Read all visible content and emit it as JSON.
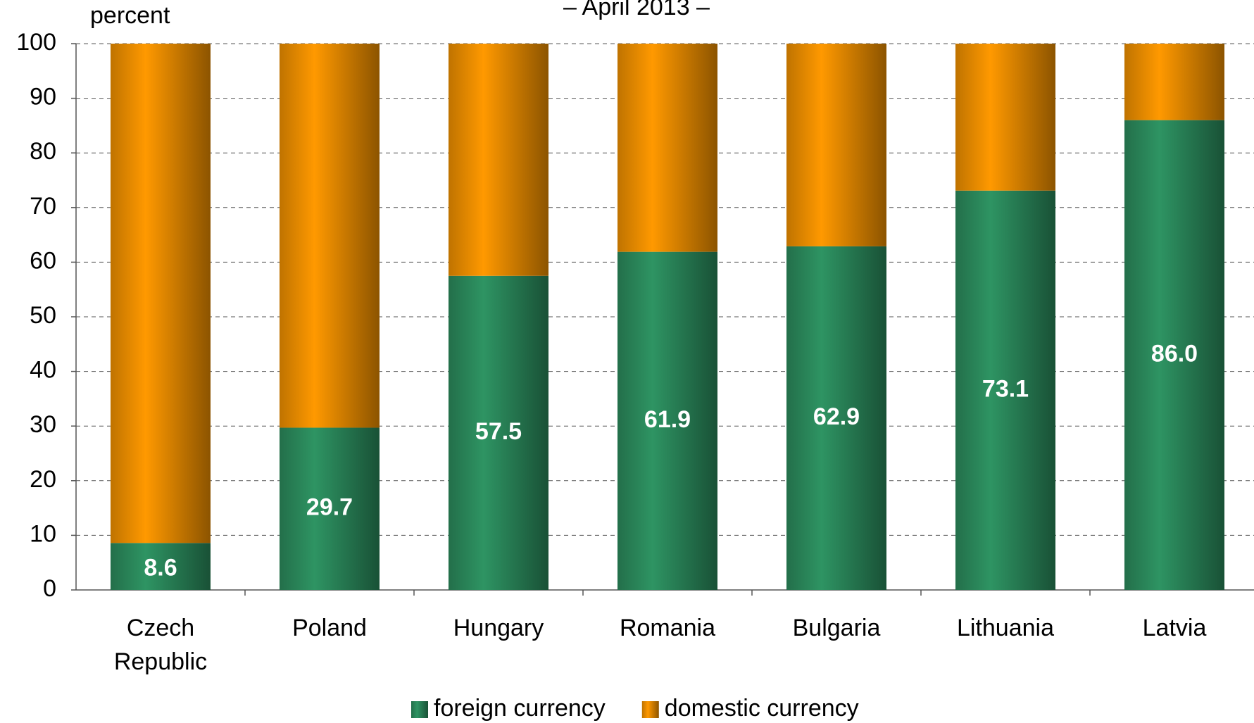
{
  "chart_data": {
    "type": "stacked-bar",
    "subtitle": "– April 2013 –",
    "y_label": "percent",
    "categories": [
      "Czech\nRepublic",
      "Poland",
      "Hungary",
      "Romania",
      "Bulgaria",
      "Lithuania",
      "Latvia"
    ],
    "series": [
      {
        "name": "foreign currency",
        "color": "#2e9463",
        "values": [
          8.6,
          29.7,
          57.5,
          61.9,
          62.9,
          73.1,
          86.0
        ],
        "value_labels": [
          "8.6",
          "29.7",
          "57.5",
          "61.9",
          "62.9",
          "73.1",
          "86.0"
        ]
      },
      {
        "name": "domestic currency",
        "color": "#ff9900",
        "values": [
          91.4,
          70.3,
          42.5,
          38.1,
          37.1,
          26.9,
          14.0
        ]
      }
    ],
    "ylim": [
      0,
      100
    ],
    "yticks": [
      0,
      10,
      20,
      30,
      40,
      50,
      60,
      70,
      80,
      90,
      100
    ],
    "grid": true,
    "legend": "bottom"
  }
}
